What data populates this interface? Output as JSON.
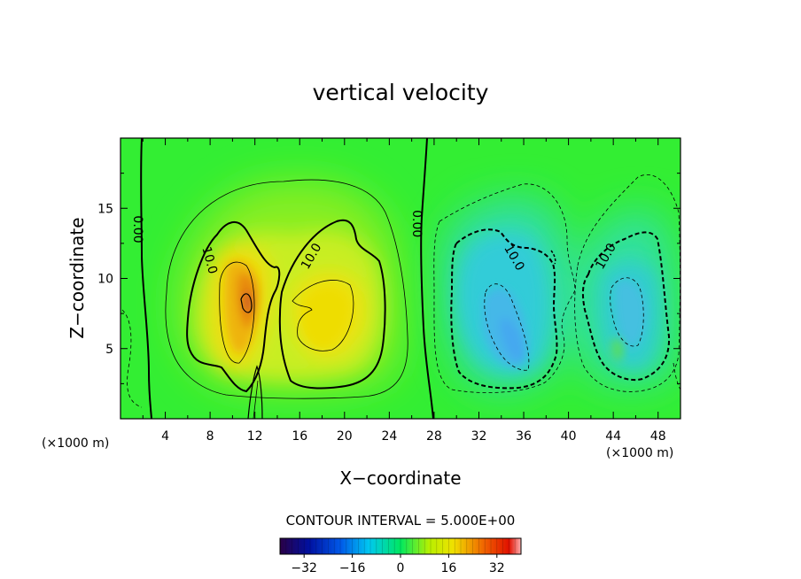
{
  "chart_data": {
    "type": "heatmap",
    "title": "vertical velocity",
    "xlabel": "X−coordinate",
    "ylabel": "Z−coordinate",
    "x_unit_left": "(×1000 m)",
    "x_unit_right": "(×1000 m)",
    "xlim": [
      0,
      50
    ],
    "ylim": [
      0,
      20
    ],
    "x_ticks": [
      4,
      8,
      12,
      16,
      20,
      24,
      28,
      32,
      36,
      40,
      44,
      48
    ],
    "y_ticks": [
      5,
      10,
      15
    ],
    "contour_interval_text": "CONTOUR INTERVAL = 5.000E+00",
    "colorbar": {
      "range": [
        -40,
        40
      ],
      "ticks": [
        -32,
        -16,
        0,
        16,
        32
      ],
      "tick_labels": [
        "−32",
        "−16",
        "0",
        "16",
        "32"
      ]
    },
    "contour_labels": [
      {
        "text": "0.00",
        "x": 1.6,
        "y": 13.5,
        "rotate": 90
      },
      {
        "text": "10.0",
        "x": 8.0,
        "y": 11.3,
        "rotate": 75
      },
      {
        "text": "10.0",
        "x": 17.0,
        "y": 11.6,
        "rotate": -60
      },
      {
        "text": "0.00",
        "x": 26.5,
        "y": 13.9,
        "rotate": 90
      },
      {
        "text": "10.0",
        "x": 35.2,
        "y": 11.5,
        "rotate": 60
      },
      {
        "text": "10.0",
        "x": 43.3,
        "y": 11.6,
        "rotate": -60
      }
    ],
    "features": [
      {
        "name": "updraft-core",
        "x": 11.2,
        "z": 8.8,
        "w_max": 26
      },
      {
        "name": "updraft-right-lobe",
        "x": 18.0,
        "z": 7.5,
        "w_max": 17
      },
      {
        "name": "downdraft-core",
        "x": 35.0,
        "z": 5.0,
        "w_min": -18
      },
      {
        "name": "downdraft-right",
        "x": 45.0,
        "z": 8.0,
        "w_min": -14
      }
    ]
  }
}
